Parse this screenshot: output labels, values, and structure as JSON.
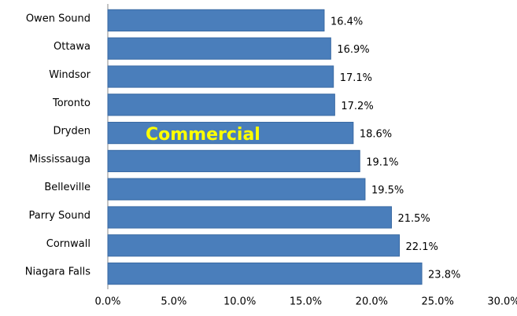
{
  "chart_data": {
    "type": "bar",
    "orientation": "horizontal",
    "categories": [
      "Owen Sound",
      "Ottawa",
      "Windsor",
      "Toronto",
      "Dryden",
      "Mississauga",
      "Belleville",
      "Parry Sound",
      "Cornwall",
      "Niagara Falls"
    ],
    "values": [
      16.4,
      16.9,
      17.1,
      17.2,
      18.6,
      19.1,
      19.5,
      21.5,
      22.1,
      23.8
    ],
    "value_labels": [
      "16.4%",
      "16.9%",
      "17.1%",
      "17.2%",
      "18.6%",
      "19.1%",
      "19.5%",
      "21.5%",
      "22.1%",
      "23.8%"
    ],
    "color": "#4a7ebb",
    "xlim": [
      0,
      30
    ],
    "xticks": [
      {
        "value": 0,
        "label": "0.0%"
      },
      {
        "value": 5,
        "label": "5.0%"
      },
      {
        "value": 10,
        "label": "10.0%"
      },
      {
        "value": 15,
        "label": "15.0%"
      },
      {
        "value": 20,
        "label": "20.0%"
      },
      {
        "value": 25,
        "label": "25.0%"
      },
      {
        "value": 30,
        "label": "30.0%"
      }
    ],
    "annotation": "Commercial"
  }
}
